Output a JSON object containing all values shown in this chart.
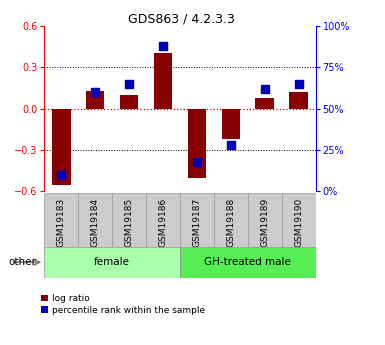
{
  "title": "GDS863 / 4.2.3.3",
  "samples": [
    "GSM19183",
    "GSM19184",
    "GSM19185",
    "GSM19186",
    "GSM19187",
    "GSM19188",
    "GSM19189",
    "GSM19190"
  ],
  "log_ratio": [
    -0.55,
    0.13,
    0.1,
    0.4,
    -0.5,
    -0.22,
    0.08,
    0.12
  ],
  "percentile": [
    10,
    60,
    65,
    88,
    18,
    28,
    62,
    65
  ],
  "groups": [
    {
      "label": "female",
      "start": 0,
      "end": 4,
      "color": "#aaffaa"
    },
    {
      "label": "GH-treated male",
      "start": 4,
      "end": 8,
      "color": "#55ee55"
    }
  ],
  "bar_color": "#880000",
  "dot_color": "#0000bb",
  "ylim_left": [
    -0.6,
    0.6
  ],
  "ylim_right": [
    0,
    100
  ],
  "yticks_left": [
    -0.6,
    -0.3,
    0.0,
    0.3,
    0.6
  ],
  "yticks_right": [
    0,
    25,
    50,
    75,
    100
  ],
  "hline_zero_color": "#cc0000",
  "grid_color": "#000000",
  "background_color": "#ffffff",
  "legend_items": [
    "log ratio",
    "percentile rank within the sample"
  ],
  "other_label": "other",
  "bar_width": 0.55,
  "dot_size": 28
}
